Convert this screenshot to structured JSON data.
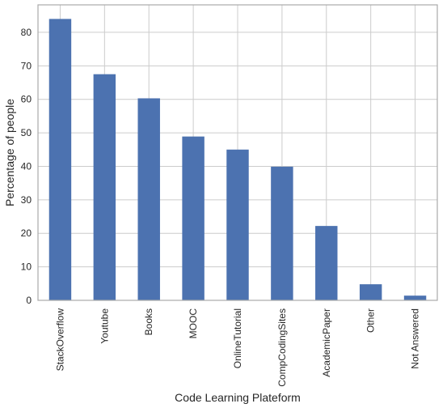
{
  "chart_data": {
    "type": "bar",
    "title": "",
    "xlabel": "Code Learning Plateform",
    "ylabel": "Percentage of people",
    "categories": [
      "StackOverflow",
      "Youtube",
      "Books",
      "MOOC",
      "OnlineTutorial",
      "CompCodingSites",
      "AcademicPaper",
      "Other",
      "Not Answered"
    ],
    "values": [
      84.0,
      67.5,
      60.3,
      48.9,
      45.0,
      39.9,
      22.2,
      4.8,
      1.4
    ],
    "ylim": [
      0,
      88.2
    ],
    "yticks": [
      0,
      10,
      20,
      30,
      40,
      50,
      60,
      70,
      80
    ],
    "grid": true,
    "legend": "none",
    "colors": {
      "bar": "#4c72b0",
      "grid": "#cccccc",
      "frame": "#aaaaaa",
      "background": "#ffffff"
    }
  }
}
